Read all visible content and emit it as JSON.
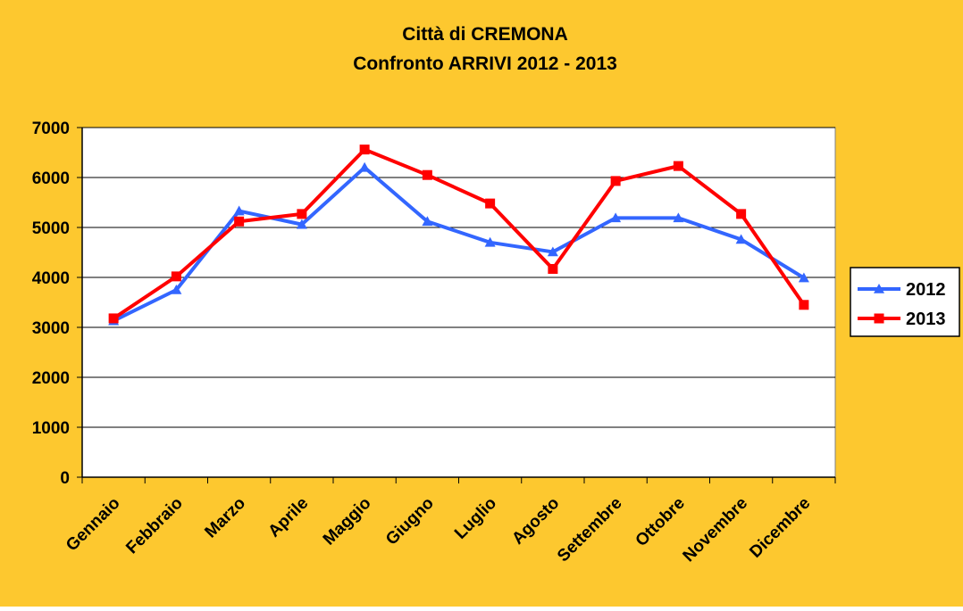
{
  "chart_data": {
    "type": "line",
    "title": "Città di CREMONA",
    "subtitle": "Confronto ARRIVI 2012 - 2013",
    "categories": [
      "Gennaio",
      "Febbraio",
      "Marzo",
      "Aprile",
      "Maggio",
      "Giugno",
      "Luglio",
      "Agosto",
      "Settembre",
      "Ottobre",
      "Novembre",
      "Dicembre"
    ],
    "series": [
      {
        "name": "2012",
        "color": "#3366FF",
        "marker": "triangle",
        "values": [
          3130,
          3750,
          5330,
          5060,
          6200,
          5120,
          4700,
          4510,
          5190,
          5190,
          4760,
          3990
        ]
      },
      {
        "name": "2013",
        "color": "#FF0000",
        "marker": "square",
        "values": [
          3180,
          4020,
          5120,
          5270,
          6560,
          6050,
          5480,
          4170,
          5930,
          6230,
          5270,
          3450
        ]
      }
    ],
    "ylim": [
      0,
      7000
    ],
    "yticks": [
      "0",
      "1000",
      "2000",
      "3000",
      "4000",
      "5000",
      "6000",
      "7000"
    ],
    "grid": true,
    "legend": "right",
    "colors": {
      "background": "#FDC82F",
      "plot_area": "#FFFFFF"
    }
  }
}
